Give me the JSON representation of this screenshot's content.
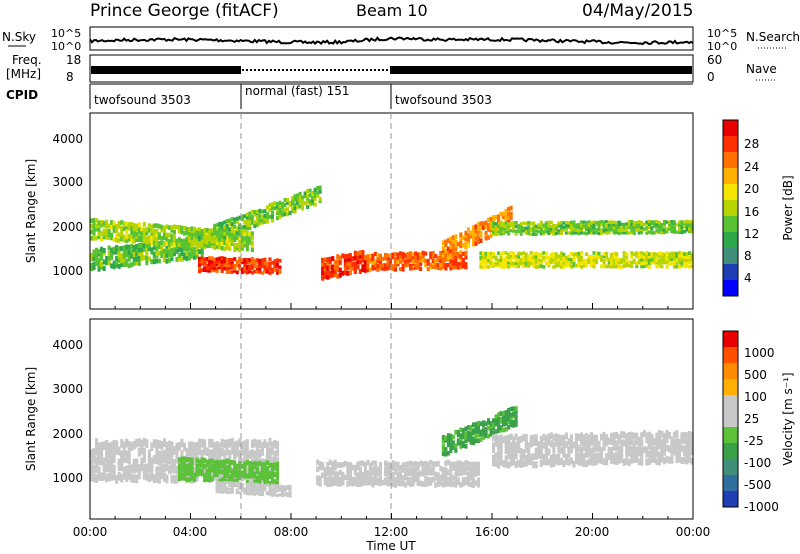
{
  "header": {
    "station": "Prince George (fitACF)",
    "beam": "Beam 10",
    "date": "04/May/2015"
  },
  "noise_panel": {
    "left_label": "N.Sky",
    "left_ticks": [
      "10^5",
      "10^0"
    ],
    "right_ticks": [
      "10^5",
      "10^0"
    ],
    "right_label": "N.Search"
  },
  "freq_panel": {
    "left_label_1": "Freq.",
    "left_label_2": "[MHz]",
    "left_ticks": [
      "18",
      "8"
    ],
    "right_ticks": [
      "60",
      "0"
    ],
    "right_label": "Nave"
  },
  "cpid_panel": {
    "label": "CPID",
    "segments": [
      {
        "name": "twofsound 3503",
        "start_h": 0,
        "end_h": 6
      },
      {
        "name": "normal (fast) 151",
        "start_h": 6,
        "end_h": 12
      },
      {
        "name": "twofsound 3503",
        "start_h": 12,
        "end_h": 24
      }
    ]
  },
  "x_axis": {
    "label": "Time UT",
    "ticks": [
      "00:00",
      "04:00",
      "08:00",
      "12:00",
      "16:00",
      "20:00",
      "00:00"
    ],
    "range_h": [
      0,
      24
    ]
  },
  "power_panel": {
    "ylabel": "Slant Range [km]",
    "yticks": [
      "4000",
      "3000",
      "2000",
      "1000"
    ],
    "colorbar_label": "Power [dB]",
    "colorbar_ticks": [
      "28",
      "24",
      "20",
      "16",
      "12",
      "8",
      "4"
    ],
    "colors": [
      "#0000ff",
      "#1e3fb4",
      "#3f8f7a",
      "#2ea84a",
      "#59c233",
      "#b8d400",
      "#f5e600",
      "#ffb000",
      "#ff7000",
      "#ff3000",
      "#e80000"
    ]
  },
  "velocity_panel": {
    "ylabel": "Slant Range [km]",
    "yticks": [
      "4000",
      "3000",
      "2000",
      "1000"
    ],
    "colorbar_label": "Velocity [m s⁻¹]",
    "colorbar_ticks": [
      "1000",
      "500",
      "100",
      "25",
      "-25",
      "-100",
      "-500",
      "-1000"
    ],
    "colors": [
      "#1e3fb4",
      "#2f6fa0",
      "#3f8f7a",
      "#3aa04a",
      "#5cc23a",
      "#c8c8c8",
      "#c8c8c8",
      "#ffb000",
      "#ff8c00",
      "#ff5000",
      "#e80000"
    ]
  },
  "chart_data": [
    {
      "type": "heatmap",
      "title": "Power",
      "xlabel": "Time UT",
      "ylabel": "Slant Range [km]",
      "x_range_h": [
        0,
        24
      ],
      "ylim_km": [
        180,
        4600
      ],
      "colorbar": {
        "label": "Power [dB]",
        "range": [
          0,
          30
        ]
      },
      "bands": [
        {
          "t0": 0.0,
          "t1": 4.5,
          "center_km": [
            1300,
            1600
          ],
          "width_km": 500,
          "value_db": 12
        },
        {
          "t0": 0.0,
          "t1": 6.5,
          "center_km": [
            2000,
            1700
          ],
          "width_km": 450,
          "value_db": 14
        },
        {
          "t0": 4.3,
          "t1": 7.6,
          "center_km": [
            1200,
            1150
          ],
          "width_km": 350,
          "value_db": 26
        },
        {
          "t0": 4.0,
          "t1": 9.2,
          "center_km": [
            1700,
            2800
          ],
          "width_km": 400,
          "value_db": 13
        },
        {
          "t0": 9.2,
          "t1": 11.0,
          "center_km": [
            1100,
            1300
          ],
          "width_km": 500,
          "value_db": 26
        },
        {
          "t0": 11.0,
          "t1": 15.0,
          "center_km": [
            1250,
            1300
          ],
          "width_km": 400,
          "value_db": 24
        },
        {
          "t0": 14.0,
          "t1": 16.8,
          "center_km": [
            1500,
            2300
          ],
          "width_km": 450,
          "value_db": 22
        },
        {
          "t0": 15.5,
          "t1": 24.0,
          "center_km": [
            1300,
            1300
          ],
          "width_km": 350,
          "value_db": 16
        },
        {
          "t0": 16.0,
          "t1": 24.0,
          "center_km": [
            2000,
            2050
          ],
          "width_km": 300,
          "value_db": 13
        }
      ]
    },
    {
      "type": "heatmap",
      "title": "Velocity",
      "xlabel": "Time UT",
      "ylabel": "Slant Range [km]",
      "x_range_h": [
        0,
        24
      ],
      "ylim_km": [
        180,
        4600
      ],
      "colorbar": {
        "label": "Velocity [m s⁻¹]",
        "range": [
          -1000,
          1000
        ]
      },
      "bands": [
        {
          "t0": 0.0,
          "t1": 7.5,
          "center_km": [
            1500,
            1500
          ],
          "width_km": 900,
          "value_ms": 0
        },
        {
          "t0": 3.5,
          "t1": 7.5,
          "center_km": [
            1300,
            1200
          ],
          "width_km": 500,
          "value_ms": -200
        },
        {
          "t0": 5.0,
          "t1": 8.0,
          "center_km": [
            900,
            800
          ],
          "width_km": 250,
          "value_ms": 80
        },
        {
          "t0": 9.0,
          "t1": 15.5,
          "center_km": [
            1200,
            1200
          ],
          "width_km": 550,
          "value_ms": 150
        },
        {
          "t0": 14.0,
          "t1": 17.0,
          "center_km": [
            1800,
            2500
          ],
          "width_km": 450,
          "value_ms": -300
        },
        {
          "t0": 16.0,
          "t1": 24.0,
          "center_km": [
            1700,
            1800
          ],
          "width_km": 700,
          "value_ms": 0
        }
      ]
    }
  ]
}
